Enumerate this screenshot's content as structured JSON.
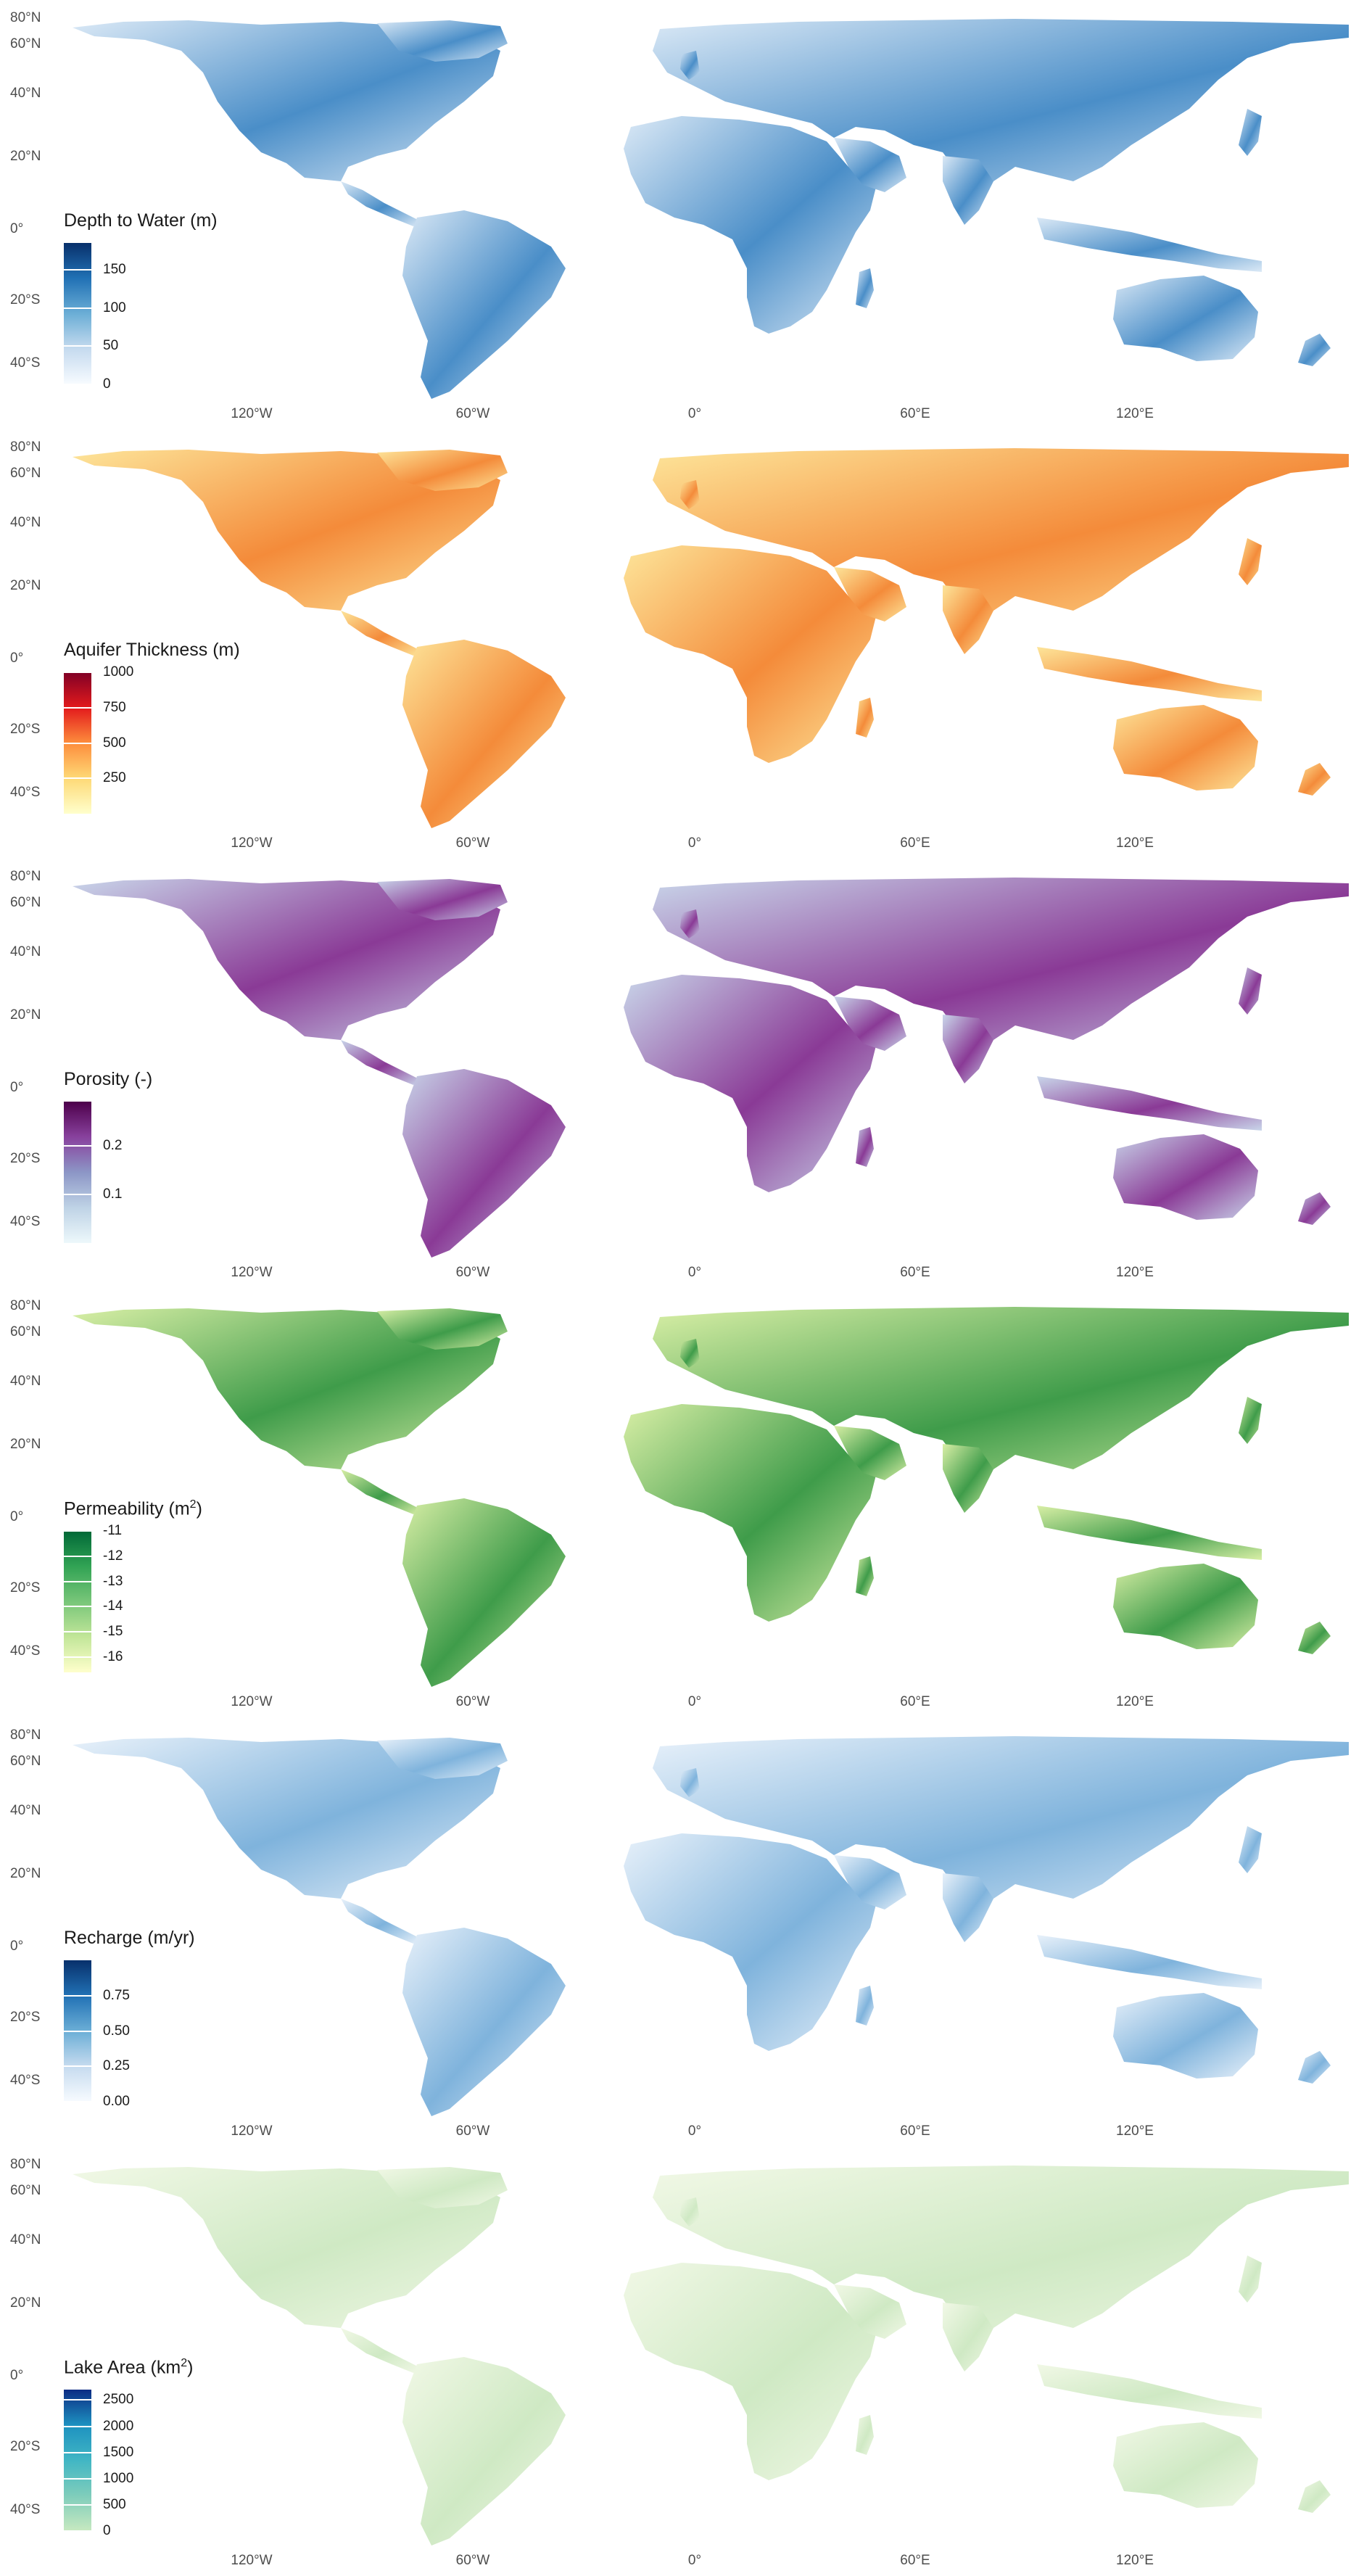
{
  "axes": {
    "lat_labels": [
      "80°N",
      "60°N",
      "40°N",
      "20°N",
      "0°",
      "20°S",
      "40°S"
    ],
    "lon_labels": [
      "120°W",
      "60°W",
      "0°",
      "60°E",
      "120°E"
    ]
  },
  "panels": [
    {
      "id": "depth",
      "legend_title": "Depth to Water (m)",
      "colors": [
        "#f7fbff",
        "#c6dbef",
        "#6baed6",
        "#2171b5",
        "#08306b"
      ],
      "ticks": [
        "150",
        "100",
        "50",
        "0"
      ],
      "tick_values": [
        150,
        100,
        50,
        0
      ],
      "range": [
        0,
        185
      ],
      "map_color": "#4a8ec8",
      "map_light": "#dbe9f6"
    },
    {
      "id": "thickness",
      "legend_title": "Aquifer Thickness (m)",
      "colors": [
        "#ffffcc",
        "#fed976",
        "#fd8d3c",
        "#e31a1c",
        "#800026"
      ],
      "ticks": [
        "1000",
        "750",
        "500",
        "250"
      ],
      "tick_values": [
        1000,
        750,
        500,
        250
      ],
      "range": [
        0,
        1000
      ],
      "map_color": "#f48b3a",
      "map_light": "#fde59a"
    },
    {
      "id": "porosity",
      "legend_title": "Porosity (-)",
      "colors": [
        "#edf8fb",
        "#bfd3e6",
        "#8c96c6",
        "#88419d",
        "#4d004b"
      ],
      "ticks": [
        "0.2",
        "0.1"
      ],
      "tick_values": [
        0.2,
        0.1
      ],
      "range": [
        0,
        0.29
      ],
      "map_color": "#8a3a96",
      "map_light": "#c9d6ea"
    },
    {
      "id": "permeability",
      "legend_title": "Permeability (m",
      "legend_title_sup": "2",
      "legend_title_end": ")",
      "colors": [
        "#ffffcc",
        "#c2e699",
        "#78c679",
        "#31a354",
        "#006837"
      ],
      "ticks": [
        "-11",
        "-12",
        "-13",
        "-14",
        "-15",
        "-16"
      ],
      "tick_values": [
        -11,
        -12,
        -13,
        -14,
        -15,
        -16
      ],
      "range": [
        -16.6,
        -11
      ],
      "map_color": "#3f9c4a",
      "map_light": "#d9efa6"
    },
    {
      "id": "recharge",
      "legend_title": "Recharge (m/yr)",
      "colors": [
        "#f7fbff",
        "#c6dbef",
        "#6baed6",
        "#2171b5",
        "#08306b"
      ],
      "ticks": [
        "0.75",
        "0.50",
        "0.25",
        "0.00"
      ],
      "tick_values": [
        0.75,
        0.5,
        0.25,
        0.0
      ],
      "range": [
        0,
        1.0
      ],
      "map_color": "#7fb3dc",
      "map_light": "#e8f1fa"
    },
    {
      "id": "lake",
      "legend_title": "Lake Area (km",
      "legend_title_sup": "2",
      "legend_title_end": ")",
      "colors": [
        "#c7e9c0",
        "#7fcdbb",
        "#41b6c4",
        "#1d91c0",
        "#0c2c84"
      ],
      "ticks": [
        "2500",
        "2000",
        "1500",
        "1000",
        "500",
        "0"
      ],
      "tick_values": [
        2500,
        2000,
        1500,
        1000,
        500,
        0
      ],
      "range": [
        0,
        2700
      ],
      "map_color": "#cfe9c4",
      "map_light": "#f1f8e6"
    }
  ]
}
